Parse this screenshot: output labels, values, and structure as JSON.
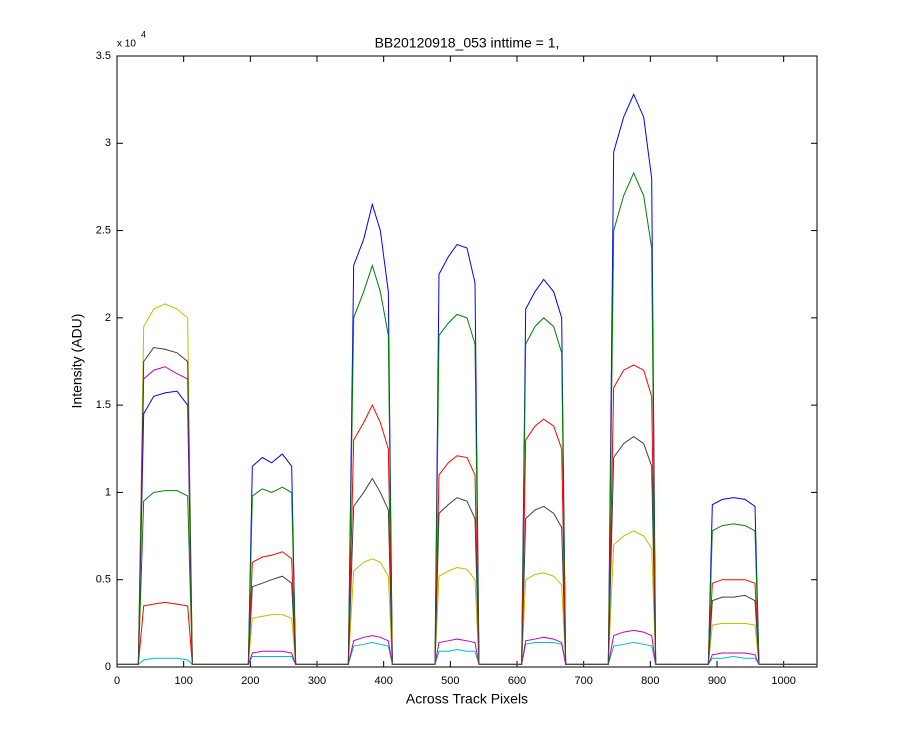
{
  "chart_data": {
    "type": "line",
    "title": "BB20120918_053 inttime = 1,",
    "x_label": "Across Track Pixels",
    "y_label": "Intensity (ADU)",
    "y_exponent": {
      "base": "x 10",
      "power": "4"
    },
    "xlim": [
      0,
      1050
    ],
    "ylim": [
      0,
      3.5
    ],
    "xticks": [
      0,
      100,
      200,
      300,
      400,
      500,
      600,
      700,
      800,
      900,
      1000
    ],
    "yticks": [
      0,
      0.5,
      1,
      1.5,
      2,
      2.5,
      3,
      3.5
    ],
    "grid": false,
    "x": [
      0,
      32,
      40,
      55,
      72,
      90,
      106,
      113,
      197,
      203,
      218,
      232,
      248,
      262,
      268,
      347,
      355,
      370,
      383,
      395,
      407,
      413,
      477,
      483,
      497,
      510,
      525,
      537,
      543,
      607,
      613,
      627,
      640,
      655,
      667,
      673,
      737,
      745,
      760,
      775,
      790,
      802,
      808,
      887,
      893,
      908,
      925,
      942,
      957,
      963,
      1050
    ],
    "series": [
      {
        "color": "#0000ff",
        "values": [
          0.015,
          0.015,
          1.45,
          1.55,
          1.57,
          1.58,
          1.5,
          0.015,
          0.015,
          1.15,
          1.2,
          1.17,
          1.22,
          1.15,
          0.015,
          0.015,
          2.3,
          2.45,
          2.65,
          2.5,
          2.15,
          0.015,
          0.015,
          2.25,
          2.35,
          2.42,
          2.4,
          2.2,
          0.015,
          0.015,
          2.05,
          2.15,
          2.22,
          2.15,
          2.0,
          0.015,
          0.015,
          2.95,
          3.15,
          3.28,
          3.15,
          2.8,
          0.015,
          0.015,
          0.93,
          0.96,
          0.97,
          0.96,
          0.92,
          0.015,
          0.015
        ]
      },
      {
        "color": "#008000",
        "values": [
          0.015,
          0.015,
          0.95,
          1.0,
          1.01,
          1.01,
          0.98,
          0.015,
          0.015,
          0.98,
          1.02,
          1.0,
          1.03,
          1.0,
          0.015,
          0.015,
          2.0,
          2.15,
          2.3,
          2.15,
          1.9,
          0.015,
          0.015,
          1.9,
          1.97,
          2.02,
          2.0,
          1.85,
          0.015,
          0.015,
          1.85,
          1.95,
          2.0,
          1.95,
          1.8,
          0.015,
          0.015,
          2.5,
          2.7,
          2.83,
          2.7,
          2.4,
          0.015,
          0.015,
          0.78,
          0.81,
          0.82,
          0.81,
          0.78,
          0.015,
          0.015
        ]
      },
      {
        "color": "#ff0000",
        "values": [
          0.015,
          0.015,
          0.35,
          0.36,
          0.37,
          0.36,
          0.35,
          0.015,
          0.015,
          0.6,
          0.63,
          0.64,
          0.66,
          0.62,
          0.015,
          0.015,
          1.3,
          1.4,
          1.5,
          1.4,
          1.25,
          0.015,
          0.015,
          1.1,
          1.17,
          1.21,
          1.2,
          1.1,
          0.015,
          0.015,
          1.3,
          1.38,
          1.42,
          1.38,
          1.25,
          0.015,
          0.015,
          1.6,
          1.7,
          1.73,
          1.7,
          1.55,
          0.015,
          0.015,
          0.48,
          0.5,
          0.5,
          0.5,
          0.48,
          0.015,
          0.015
        ]
      },
      {
        "color": "#00bfbf",
        "values": [
          0.015,
          0.015,
          0.04,
          0.05,
          0.05,
          0.05,
          0.04,
          0.015,
          0.015,
          0.06,
          0.06,
          0.06,
          0.06,
          0.06,
          0.015,
          0.015,
          0.12,
          0.13,
          0.14,
          0.13,
          0.12,
          0.015,
          0.015,
          0.09,
          0.09,
          0.1,
          0.09,
          0.09,
          0.015,
          0.015,
          0.13,
          0.14,
          0.14,
          0.14,
          0.13,
          0.015,
          0.015,
          0.12,
          0.13,
          0.14,
          0.13,
          0.12,
          0.015,
          0.015,
          0.05,
          0.05,
          0.06,
          0.05,
          0.05,
          0.015,
          0.015
        ]
      },
      {
        "color": "#bf00bf",
        "values": [
          0.015,
          0.015,
          1.65,
          1.7,
          1.72,
          1.68,
          1.65,
          0.015,
          0.015,
          0.08,
          0.09,
          0.09,
          0.09,
          0.08,
          0.015,
          0.015,
          0.15,
          0.17,
          0.18,
          0.17,
          0.15,
          0.015,
          0.015,
          0.14,
          0.15,
          0.16,
          0.15,
          0.14,
          0.015,
          0.015,
          0.15,
          0.16,
          0.17,
          0.16,
          0.14,
          0.015,
          0.015,
          0.18,
          0.2,
          0.21,
          0.2,
          0.18,
          0.015,
          0.015,
          0.07,
          0.08,
          0.08,
          0.08,
          0.07,
          0.015,
          0.015
        ]
      },
      {
        "color": "#bfbf00",
        "values": [
          0.015,
          0.015,
          1.95,
          2.05,
          2.08,
          2.05,
          2.0,
          0.015,
          0.015,
          0.28,
          0.29,
          0.3,
          0.3,
          0.28,
          0.015,
          0.015,
          0.55,
          0.6,
          0.62,
          0.6,
          0.52,
          0.015,
          0.015,
          0.52,
          0.55,
          0.57,
          0.56,
          0.5,
          0.015,
          0.015,
          0.5,
          0.53,
          0.54,
          0.52,
          0.47,
          0.015,
          0.015,
          0.7,
          0.75,
          0.78,
          0.75,
          0.68,
          0.015,
          0.015,
          0.24,
          0.25,
          0.25,
          0.25,
          0.24,
          0.015,
          0.015
        ]
      },
      {
        "color": "#404040",
        "values": [
          0.015,
          0.015,
          1.75,
          1.83,
          1.82,
          1.8,
          1.75,
          0.015,
          0.015,
          0.46,
          0.48,
          0.5,
          0.52,
          0.48,
          0.015,
          0.015,
          0.92,
          1.0,
          1.08,
          1.0,
          0.9,
          0.015,
          0.015,
          0.88,
          0.93,
          0.97,
          0.95,
          0.85,
          0.015,
          0.015,
          0.85,
          0.9,
          0.92,
          0.88,
          0.8,
          0.015,
          0.015,
          1.2,
          1.28,
          1.32,
          1.28,
          1.15,
          0.015,
          0.015,
          0.38,
          0.4,
          0.4,
          0.41,
          0.38,
          0.015,
          0.015
        ]
      }
    ]
  }
}
